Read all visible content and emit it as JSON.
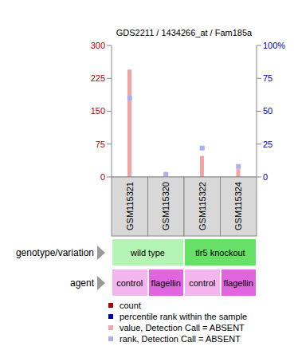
{
  "chart_data": {
    "type": "bar",
    "title": "GDS2211 / 1434266_at / Fam185a",
    "categories": [
      "GSM115321",
      "GSM115320",
      "GSM115322",
      "GSM115324"
    ],
    "series": [
      {
        "name": "value, Detection Call = ABSENT",
        "color": "#f4a4a4",
        "values": [
          245,
          3,
          48,
          18
        ]
      },
      {
        "name": "rank, Detection Call = ABSENT",
        "color": "#aab0ee",
        "type": "scatter",
        "marker": "square",
        "axis": "y2",
        "values": [
          60,
          2,
          22,
          8
        ]
      }
    ],
    "ylim": [
      0,
      300
    ],
    "yticks": [
      0,
      75,
      150,
      225,
      300
    ],
    "y2lim": [
      0,
      100
    ],
    "y2ticks": [
      0,
      25,
      50,
      75,
      {
        "value": 100,
        "label": "100%"
      }
    ],
    "legend_items": [
      {
        "name": "count",
        "color": "#aa0000"
      },
      {
        "name": "percentile rank within the sample",
        "color": "#0000aa"
      }
    ],
    "sample_rows": [
      {
        "label": "genotype/variation",
        "groups": [
          {
            "label": "wild type",
            "span": 2,
            "color": "#b4f4b4"
          },
          {
            "label": "tlr5 knockout",
            "span": 2,
            "color": "#66e066"
          }
        ]
      },
      {
        "label": "agent",
        "groups": [
          {
            "label": "control",
            "span": 1,
            "color": "#f4b4ee"
          },
          {
            "label": "flagellin",
            "span": 1,
            "color": "#e066dd"
          },
          {
            "label": "control",
            "span": 1,
            "color": "#f4b4ee"
          },
          {
            "label": "flagellin",
            "span": 1,
            "color": "#e066dd"
          }
        ]
      }
    ]
  }
}
